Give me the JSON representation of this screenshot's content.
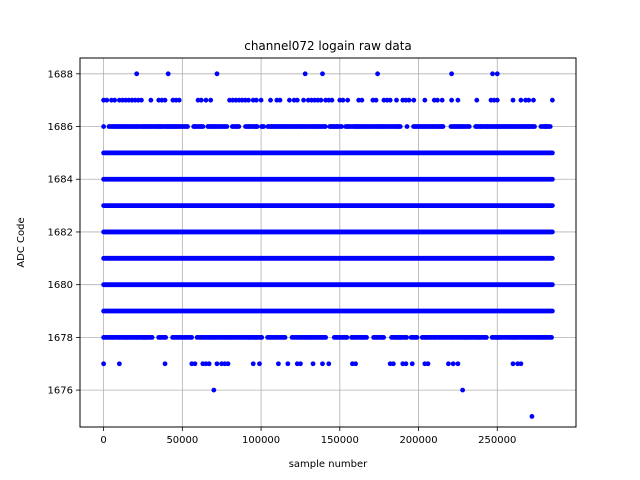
{
  "chart_data": {
    "type": "scatter",
    "title": "channel072 logain raw data",
    "xlabel": "sample number",
    "ylabel": "ADC Code",
    "xlim": [
      -15000,
      300000
    ],
    "ylim": [
      1674.6,
      1688.6
    ],
    "x_ticks": [
      0,
      50000,
      100000,
      150000,
      200000,
      250000
    ],
    "y_ticks": [
      1676,
      1678,
      1680,
      1682,
      1684,
      1686,
      1688
    ],
    "grid": true,
    "marker_color": "#0000ff",
    "x_max_sample": 285000,
    "dense_levels": [
      1679,
      1680,
      1681,
      1682,
      1683,
      1684,
      1685
    ],
    "semi_dense_levels": [
      1678,
      1686
    ],
    "series": [
      {
        "values": [
          [
            21000,
            1688
          ],
          [
            41000,
            1688
          ],
          [
            72000,
            1688
          ],
          [
            128000,
            1688
          ],
          [
            139000,
            1688
          ],
          [
            174000,
            1688
          ],
          [
            221000,
            1688
          ],
          [
            247000,
            1688
          ],
          [
            250000,
            1688
          ],
          [
            0,
            1687
          ],
          [
            2000,
            1687
          ],
          [
            5000,
            1687
          ],
          [
            7000,
            1687
          ],
          [
            10000,
            1687
          ],
          [
            12000,
            1687
          ],
          [
            14000,
            1687
          ],
          [
            16000,
            1687
          ],
          [
            18000,
            1687
          ],
          [
            20000,
            1687
          ],
          [
            22000,
            1687
          ],
          [
            24000,
            1687
          ],
          [
            30000,
            1687
          ],
          [
            35000,
            1687
          ],
          [
            37000,
            1687
          ],
          [
            39000,
            1687
          ],
          [
            44000,
            1687
          ],
          [
            46000,
            1687
          ],
          [
            48000,
            1687
          ],
          [
            60000,
            1687
          ],
          [
            62000,
            1687
          ],
          [
            65000,
            1687
          ],
          [
            68000,
            1687
          ],
          [
            80000,
            1687
          ],
          [
            82000,
            1687
          ],
          [
            84000,
            1687
          ],
          [
            86000,
            1687
          ],
          [
            88000,
            1687
          ],
          [
            90000,
            1687
          ],
          [
            92000,
            1687
          ],
          [
            95000,
            1687
          ],
          [
            97000,
            1687
          ],
          [
            100000,
            1687
          ],
          [
            106000,
            1687
          ],
          [
            110000,
            1687
          ],
          [
            112000,
            1687
          ],
          [
            118000,
            1687
          ],
          [
            121000,
            1687
          ],
          [
            123000,
            1687
          ],
          [
            127000,
            1687
          ],
          [
            130000,
            1687
          ],
          [
            132000,
            1687
          ],
          [
            134000,
            1687
          ],
          [
            136000,
            1687
          ],
          [
            138000,
            1687
          ],
          [
            141000,
            1687
          ],
          [
            143000,
            1687
          ],
          [
            145000,
            1687
          ],
          [
            150000,
            1687
          ],
          [
            152000,
            1687
          ],
          [
            155000,
            1687
          ],
          [
            162000,
            1687
          ],
          [
            164000,
            1687
          ],
          [
            171000,
            1687
          ],
          [
            173000,
            1687
          ],
          [
            178000,
            1687
          ],
          [
            180000,
            1687
          ],
          [
            182000,
            1687
          ],
          [
            186000,
            1687
          ],
          [
            190000,
            1687
          ],
          [
            192000,
            1687
          ],
          [
            194000,
            1687
          ],
          [
            197000,
            1687
          ],
          [
            204000,
            1687
          ],
          [
            210000,
            1687
          ],
          [
            212000,
            1687
          ],
          [
            215000,
            1687
          ],
          [
            221000,
            1687
          ],
          [
            225000,
            1687
          ],
          [
            237000,
            1687
          ],
          [
            246000,
            1687
          ],
          [
            248000,
            1687
          ],
          [
            250000,
            1687
          ],
          [
            260000,
            1687
          ],
          [
            265000,
            1687
          ],
          [
            268000,
            1687
          ],
          [
            270000,
            1687
          ],
          [
            273000,
            1687
          ],
          [
            285000,
            1687
          ],
          [
            0,
            1677
          ],
          [
            10000,
            1677
          ],
          [
            39000,
            1677
          ],
          [
            56000,
            1677
          ],
          [
            58000,
            1677
          ],
          [
            63000,
            1677
          ],
          [
            65000,
            1677
          ],
          [
            67000,
            1677
          ],
          [
            72000,
            1677
          ],
          [
            75000,
            1677
          ],
          [
            77000,
            1677
          ],
          [
            79000,
            1677
          ],
          [
            95000,
            1677
          ],
          [
            99000,
            1677
          ],
          [
            111000,
            1677
          ],
          [
            117000,
            1677
          ],
          [
            123000,
            1677
          ],
          [
            125000,
            1677
          ],
          [
            133000,
            1677
          ],
          [
            139000,
            1677
          ],
          [
            143000,
            1677
          ],
          [
            158000,
            1677
          ],
          [
            160000,
            1677
          ],
          [
            182000,
            1677
          ],
          [
            184000,
            1677
          ],
          [
            190000,
            1677
          ],
          [
            192000,
            1677
          ],
          [
            196000,
            1677
          ],
          [
            204000,
            1677
          ],
          [
            206000,
            1677
          ],
          [
            219000,
            1677
          ],
          [
            222000,
            1677
          ],
          [
            225000,
            1677
          ],
          [
            260000,
            1677
          ],
          [
            263000,
            1677
          ],
          [
            265000,
            1677
          ],
          [
            70000,
            1676
          ],
          [
            228000,
            1676
          ],
          [
            272000,
            1675
          ]
        ]
      }
    ]
  }
}
